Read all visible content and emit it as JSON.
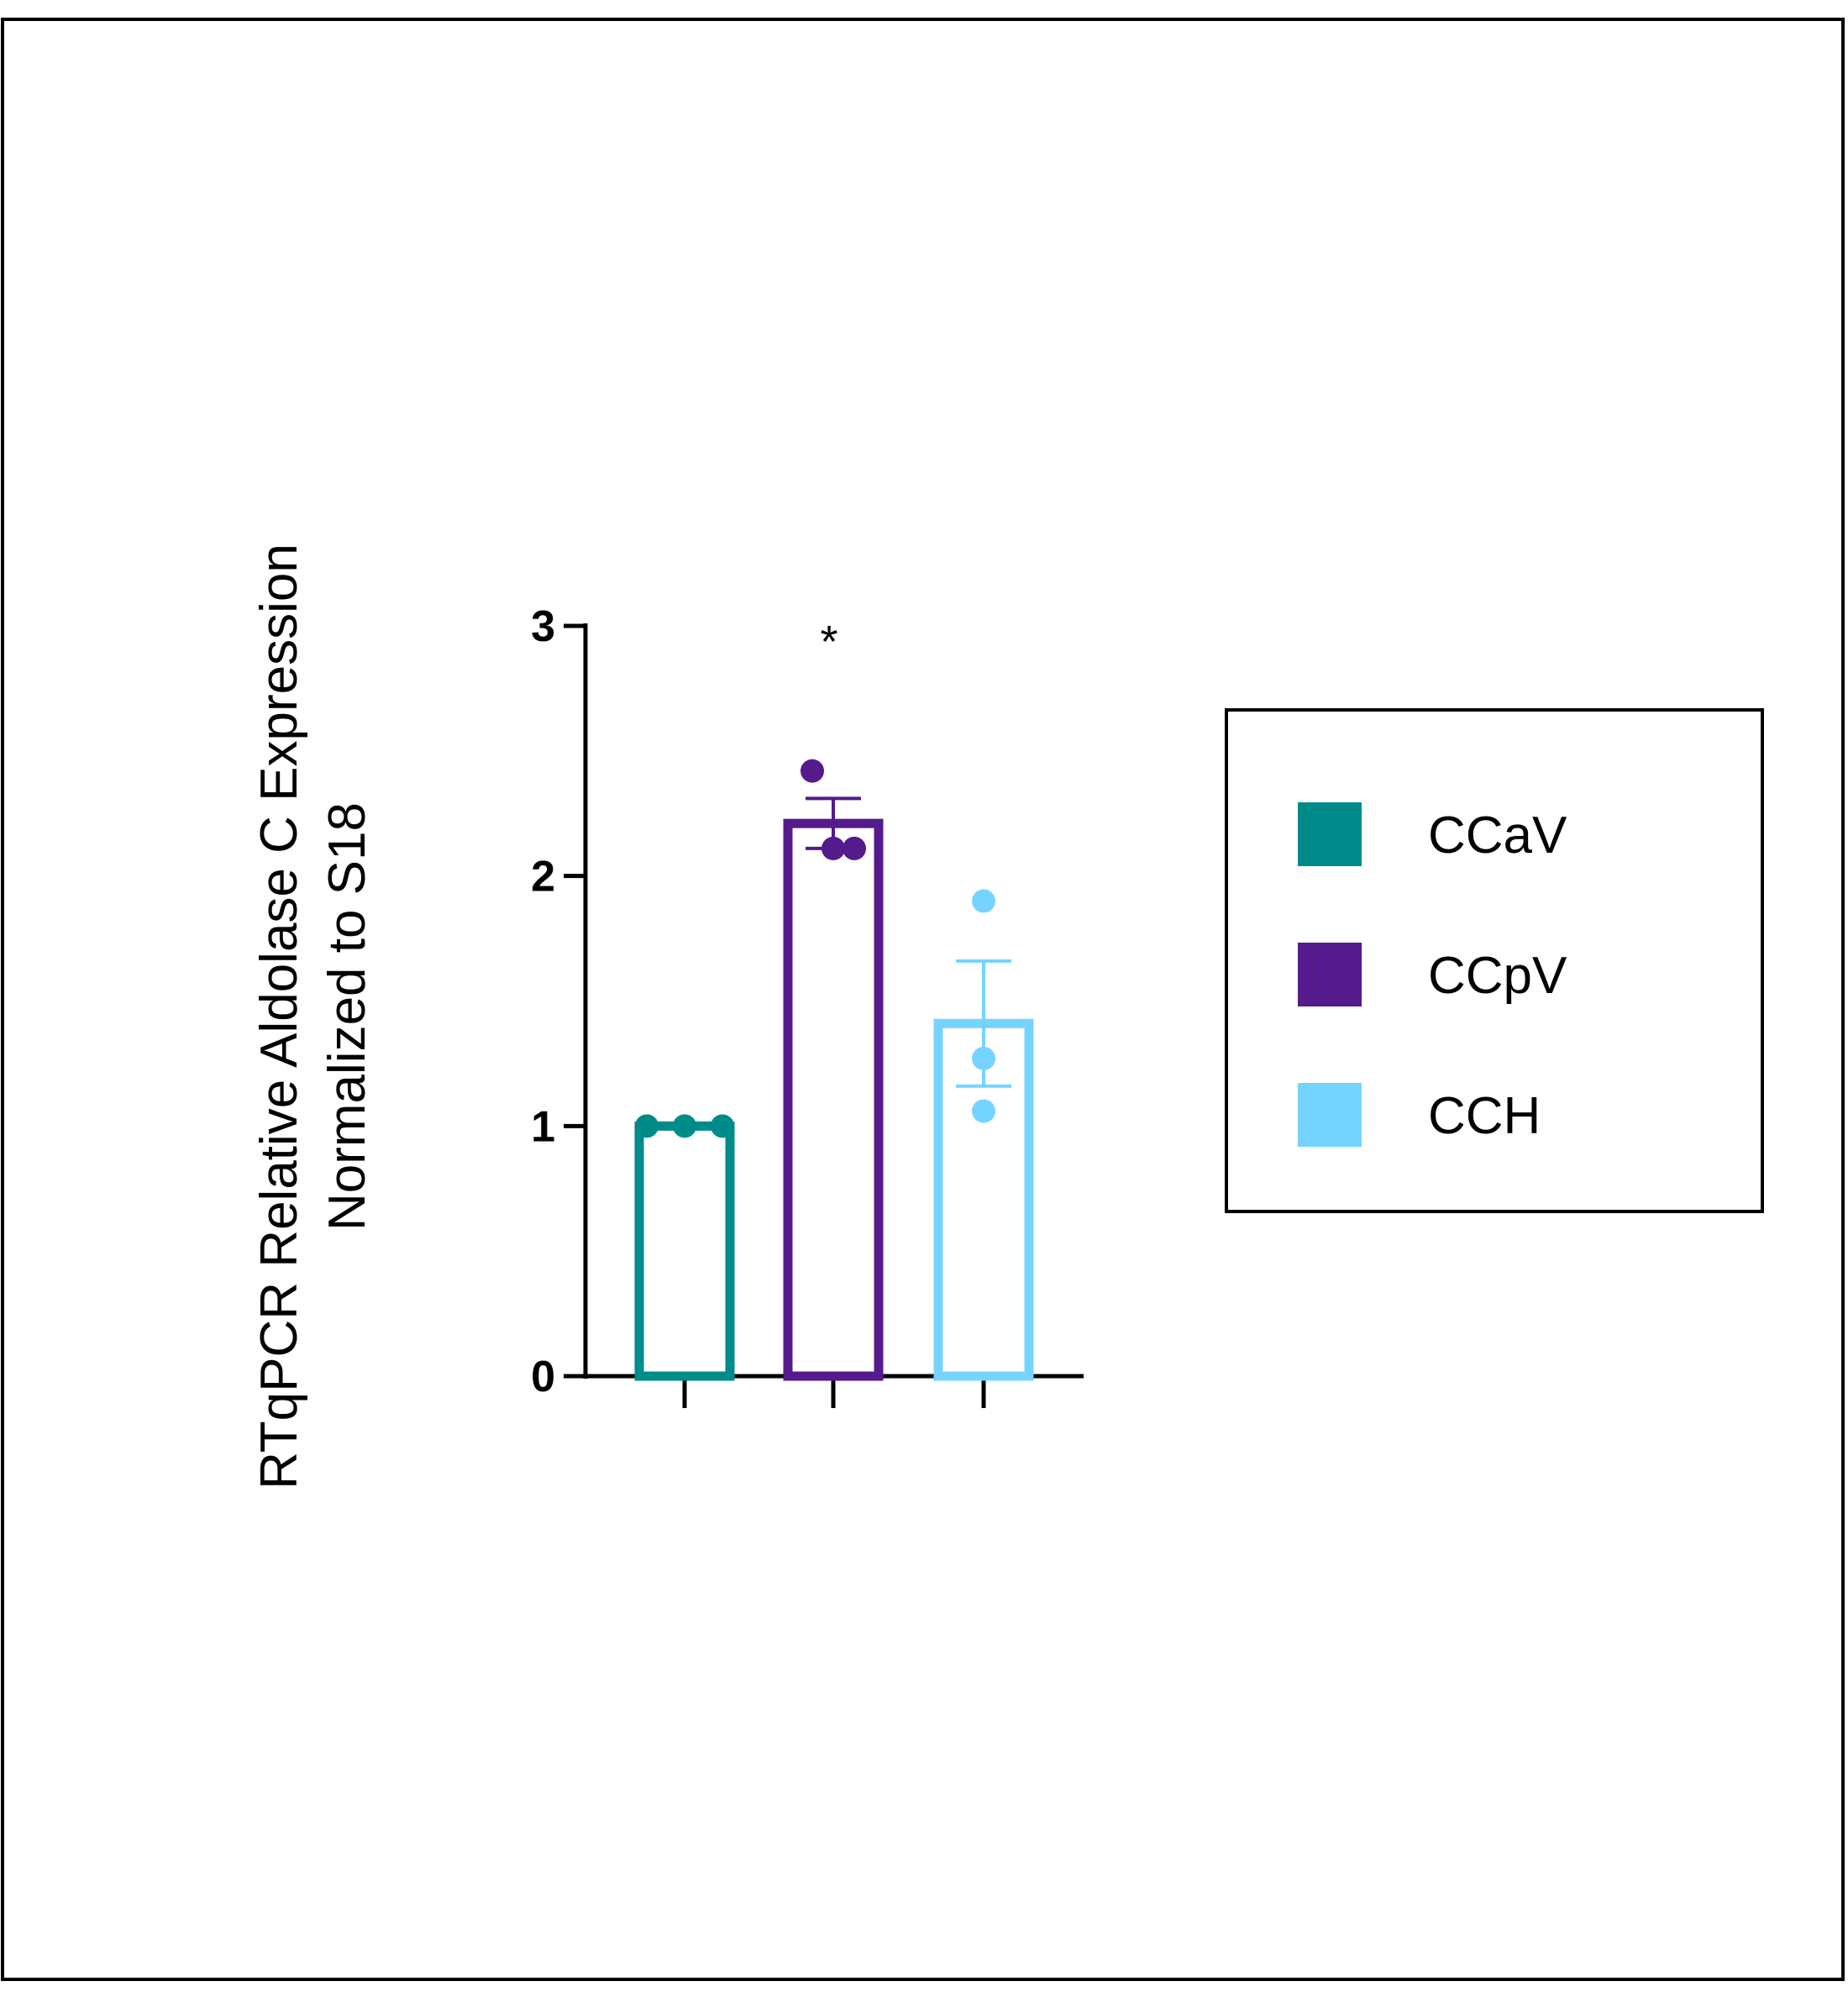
{
  "chart_data": {
    "type": "bar",
    "categories": [
      "CCaV",
      "CCpV",
      "CCH"
    ],
    "ylabel_lines": [
      "RTqPCR Relative Aldolase C Expression",
      "Normalized to S18"
    ],
    "xlabel": "",
    "ylim": [
      0,
      3
    ],
    "yticks": [
      "0",
      "1",
      "2",
      "3"
    ],
    "grid": false,
    "legend_position": "right",
    "series": [
      {
        "name": "CCaV",
        "color": "#008B8B",
        "mean": 1.0,
        "sem": 0.0,
        "points": [
          1.0,
          1.0,
          1.0
        ]
      },
      {
        "name": "CCpV",
        "color": "#551A8B",
        "mean": 2.21,
        "sem": 0.1,
        "points": [
          2.42,
          2.11,
          2.11
        ]
      },
      {
        "name": "CCH",
        "color": "#75D4FF",
        "mean": 1.41,
        "sem": 0.25,
        "points": [
          1.9,
          1.27,
          1.06
        ]
      }
    ],
    "annotations": [
      {
        "category": "CCpV",
        "text": "*"
      }
    ]
  }
}
